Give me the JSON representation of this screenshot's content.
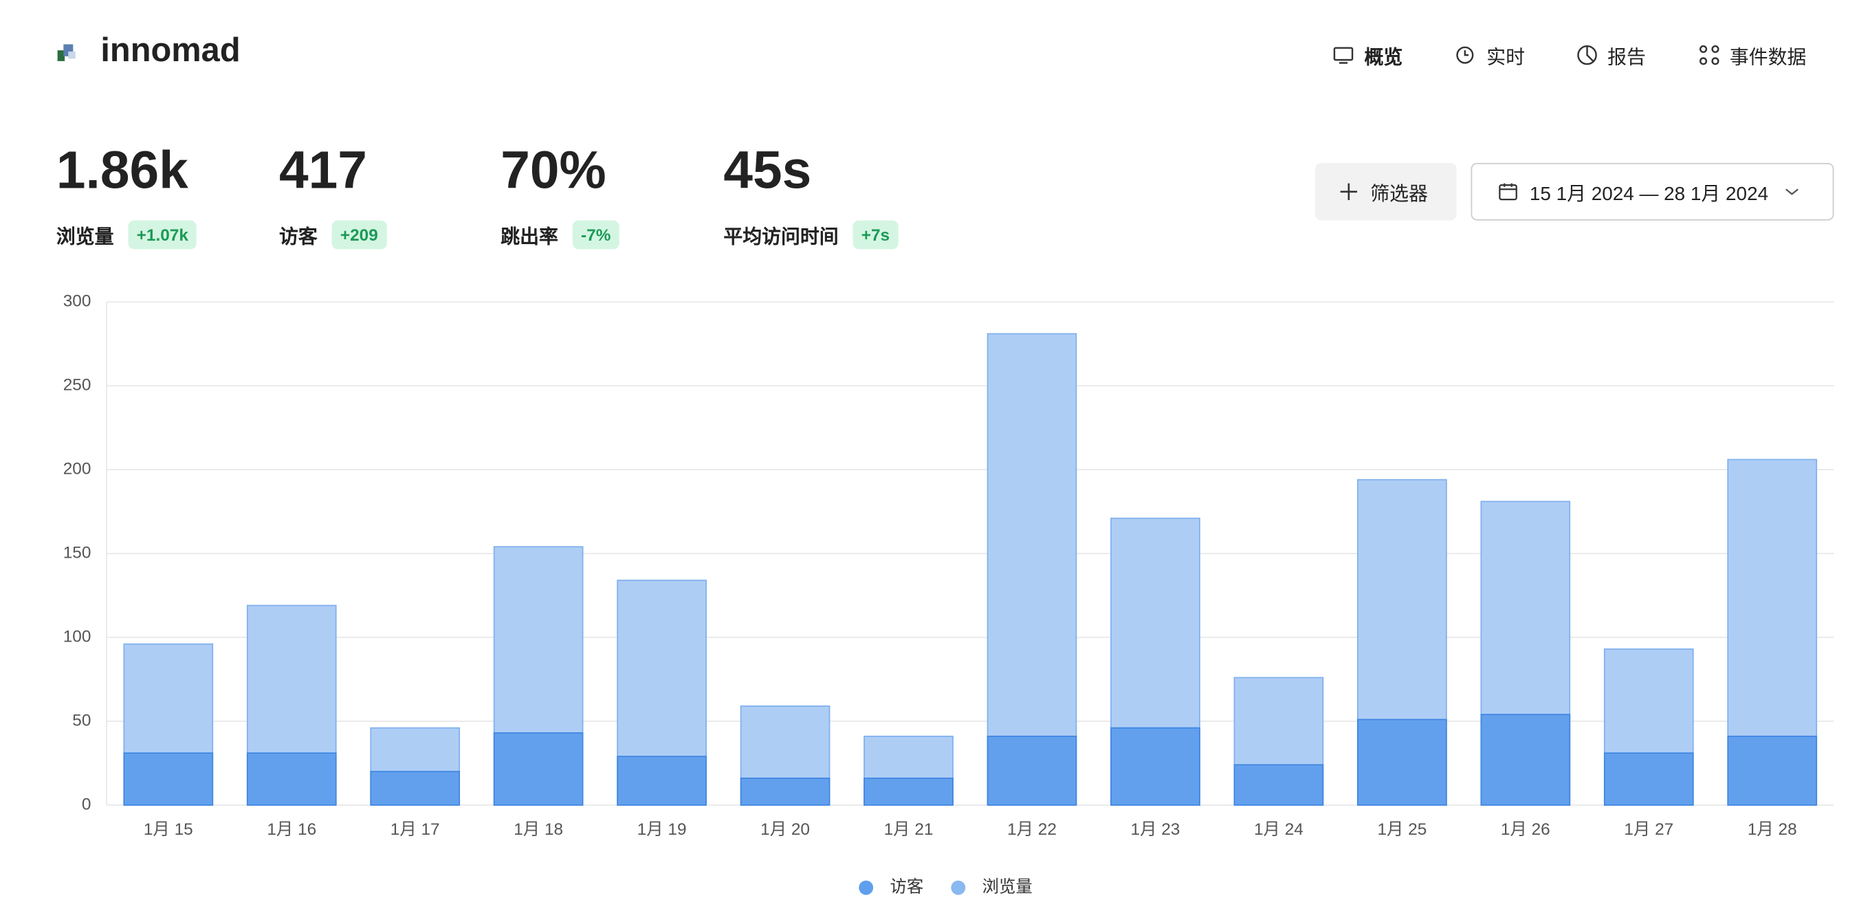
{
  "header": {
    "brand": "innomad",
    "nav": [
      "概览",
      "实时",
      "报告",
      "事件数据"
    ]
  },
  "stats": [
    {
      "value": "1.86k",
      "label": "浏览量",
      "change": "+1.07k"
    },
    {
      "value": "417",
      "label": "访客",
      "change": "+209"
    },
    {
      "value": "70%",
      "label": "跳出率",
      "change": "-7%"
    },
    {
      "value": "45s",
      "label": "平均访问时间",
      "change": "+7s"
    }
  ],
  "controls": {
    "filter": "筛选器",
    "date_range": "15 1月 2024 — 28 1月 2024"
  },
  "chart_data": {
    "type": "overlap-bar",
    "categories": [
      "1月 15",
      "1月 16",
      "1月 17",
      "1月 18",
      "1月 19",
      "1月 20",
      "1月 21",
      "1月 22",
      "1月 23",
      "1月 24",
      "1月 25",
      "1月 26",
      "1月 27",
      "1月 28"
    ],
    "series": [
      {
        "name": "浏览量",
        "color": "#aecdf5",
        "values": [
          96,
          119,
          46,
          154,
          134,
          59,
          41,
          281,
          171,
          76,
          194,
          181,
          93,
          206
        ]
      },
      {
        "name": "访客",
        "color": "#62a0ee",
        "values": [
          31,
          31,
          20,
          43,
          29,
          16,
          16,
          41,
          46,
          24,
          51,
          54,
          31,
          41
        ]
      }
    ],
    "legend_colors": [
      "#5f9fee",
      "#8ab8f0"
    ],
    "ylim": [
      0,
      300
    ],
    "yticks": [
      0,
      50,
      100,
      150,
      200,
      250,
      300
    ],
    "grid": true,
    "legend": "bottom"
  }
}
